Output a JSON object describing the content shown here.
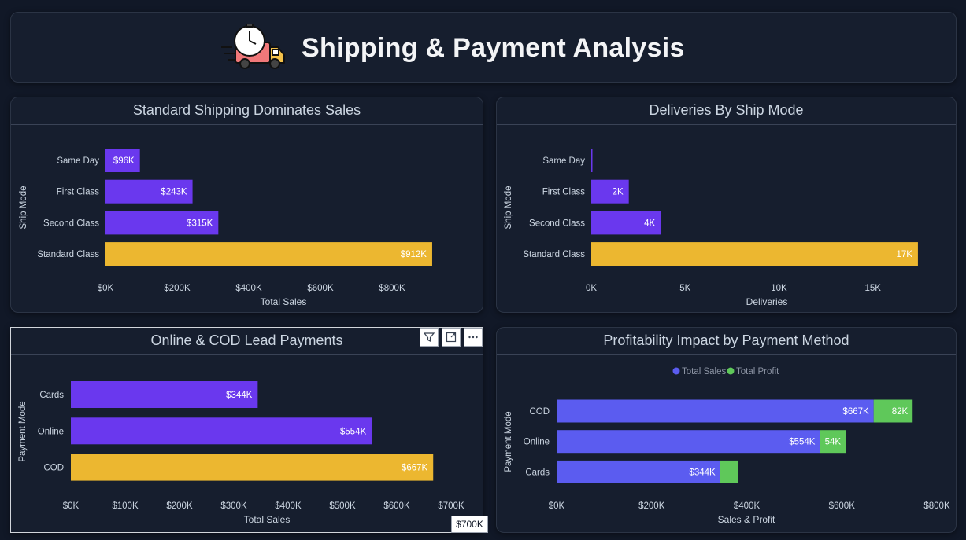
{
  "header": {
    "title": "Shipping & Payment Analysis",
    "icon": "delivery-truck-clock-icon"
  },
  "colors": {
    "purple": "#6a38ee",
    "yellow": "#ecb730",
    "blue": "#5b5cf0",
    "green": "#5fc85a"
  },
  "tooltip": {
    "text": "$700K"
  },
  "toolbar": {
    "icons": [
      "filter-icon",
      "focus-mode-icon",
      "more-options-icon"
    ]
  },
  "chart_data": [
    {
      "type": "bar",
      "title": "Standard Shipping Dominates Sales",
      "xlabel": "Total Sales",
      "ylabel": "Ship Mode",
      "categories": [
        "Same Day",
        "First Class",
        "Second Class",
        "Standard Class"
      ],
      "values": [
        96,
        243,
        315,
        912
      ],
      "data_labels": [
        "$96K",
        "$243K",
        "$315K",
        "$912K"
      ],
      "bar_colors": [
        "#6a38ee",
        "#6a38ee",
        "#6a38ee",
        "#ecb730"
      ],
      "xticks": [
        0,
        200,
        400,
        600,
        800
      ],
      "xtick_labels": [
        "$0K",
        "$200K",
        "$400K",
        "$600K",
        "$800K"
      ],
      "xlim": [
        0,
        1000
      ]
    },
    {
      "type": "bar",
      "title": "Deliveries By Ship Mode",
      "xlabel": "Deliveries",
      "ylabel": "Ship Mode",
      "categories": [
        "Same Day",
        "First Class",
        "Second Class",
        "Standard Class"
      ],
      "values": [
        0.05,
        2,
        3.7,
        17.4
      ],
      "data_labels": [
        "",
        "2K",
        "4K",
        "17K"
      ],
      "bar_colors": [
        "#6a38ee",
        "#6a38ee",
        "#6a38ee",
        "#ecb730"
      ],
      "xticks": [
        0,
        5,
        10,
        15
      ],
      "xtick_labels": [
        "0K",
        "5K",
        "10K",
        "15K"
      ],
      "xlim": [
        0,
        19.5
      ]
    },
    {
      "type": "bar",
      "title": "Online & COD Lead Payments",
      "xlabel": "Total Sales",
      "ylabel": "Payment Mode",
      "categories": [
        "Cards",
        "Online",
        "COD"
      ],
      "values": [
        344,
        554,
        667
      ],
      "data_labels": [
        "$344K",
        "$554K",
        "$667K"
      ],
      "bar_colors": [
        "#6a38ee",
        "#6a38ee",
        "#ecb730"
      ],
      "xticks": [
        0,
        100,
        200,
        300,
        400,
        500,
        600,
        700
      ],
      "xtick_labels": [
        "$0K",
        "$100K",
        "$200K",
        "$300K",
        "$400K",
        "$500K",
        "$600K",
        "$700K"
      ],
      "xlim": [
        0,
        700
      ]
    },
    {
      "type": "bar",
      "stacked": true,
      "title": "Profitability Impact by Payment Method",
      "xlabel": "Sales & Profit",
      "ylabel": "Payment Mode",
      "legend": "top-center",
      "categories": [
        "COD",
        "Online",
        "Cards"
      ],
      "series": [
        {
          "name": "Total Sales",
          "values": [
            667,
            554,
            344
          ],
          "labels": [
            "$667K",
            "$554K",
            "$344K"
          ]
        },
        {
          "name": "Total Profit",
          "values": [
            82,
            54,
            38
          ],
          "labels": [
            "82K",
            "54K",
            ""
          ]
        }
      ],
      "xticks": [
        0,
        200,
        400,
        600,
        800
      ],
      "xtick_labels": [
        "$0K",
        "$200K",
        "$400K",
        "$600K",
        "$800K"
      ],
      "xlim": [
        0,
        800
      ]
    }
  ]
}
